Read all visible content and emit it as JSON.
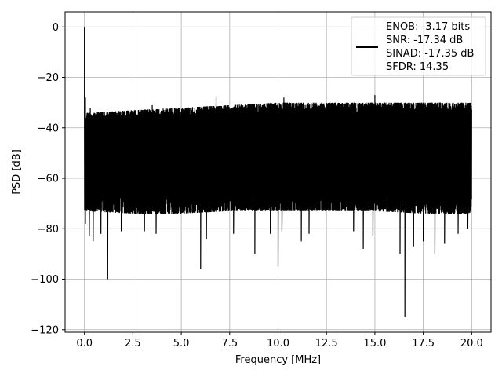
{
  "chart_data": {
    "type": "line",
    "title": "",
    "xlabel": "Frequency [MHz]",
    "ylabel": "PSD [dB]",
    "xlim": [
      -1.0,
      21.0
    ],
    "ylim": [
      -121,
      6
    ],
    "xticks": [
      0.0,
      2.5,
      5.0,
      7.5,
      10.0,
      12.5,
      15.0,
      17.5,
      20.0
    ],
    "xtick_labels": [
      "0.0",
      "2.5",
      "5.0",
      "7.5",
      "10.0",
      "12.5",
      "15.0",
      "17.5",
      "20.0"
    ],
    "yticks": [
      0,
      -20,
      -40,
      -60,
      -80,
      -100,
      -120
    ],
    "ytick_labels": [
      "0",
      "−20",
      "−40",
      "−60",
      "−80",
      "−100",
      "−120"
    ],
    "grid": true,
    "legend_position": "top-right",
    "series": [
      {
        "name": "ENOB: -3.17 bits\nSNR: -17.34 dB\nSINAD: -17.35 dB\nSFDR: 14.35",
        "color": "#000000",
        "x_range": [
          0.0,
          20.0
        ],
        "peak": {
          "x": 0.0,
          "y": 0.0
        },
        "upper_envelope_db": [
          -34,
          -33,
          -32,
          -31,
          -30,
          -30,
          -30,
          -30,
          -30
        ],
        "lower_envelope_db": [
          -73,
          -74,
          -74,
          -73,
          -73,
          -73,
          -73,
          -74,
          -74
        ],
        "deep_nulls": [
          {
            "x": 0.05,
            "y": -78
          },
          {
            "x": 0.25,
            "y": -83
          },
          {
            "x": 0.45,
            "y": -85
          },
          {
            "x": 0.85,
            "y": -82
          },
          {
            "x": 1.2,
            "y": -100
          },
          {
            "x": 1.9,
            "y": -81
          },
          {
            "x": 3.1,
            "y": -81
          },
          {
            "x": 3.7,
            "y": -82
          },
          {
            "x": 6.0,
            "y": -96
          },
          {
            "x": 6.3,
            "y": -84
          },
          {
            "x": 7.7,
            "y": -82
          },
          {
            "x": 8.8,
            "y": -90
          },
          {
            "x": 9.6,
            "y": -82
          },
          {
            "x": 10.0,
            "y": -95
          },
          {
            "x": 10.2,
            "y": -81
          },
          {
            "x": 11.2,
            "y": -85
          },
          {
            "x": 11.6,
            "y": -82
          },
          {
            "x": 13.9,
            "y": -81
          },
          {
            "x": 14.4,
            "y": -88
          },
          {
            "x": 14.9,
            "y": -83
          },
          {
            "x": 16.3,
            "y": -90
          },
          {
            "x": 16.55,
            "y": -115
          },
          {
            "x": 17.0,
            "y": -87
          },
          {
            "x": 17.5,
            "y": -85
          },
          {
            "x": 18.1,
            "y": -90
          },
          {
            "x": 18.6,
            "y": -86
          },
          {
            "x": 19.3,
            "y": -82
          },
          {
            "x": 19.8,
            "y": -80
          }
        ],
        "upper_spurs": [
          {
            "x": 0.05,
            "y": -28
          },
          {
            "x": 0.3,
            "y": -32
          },
          {
            "x": 3.5,
            "y": -31
          },
          {
            "x": 6.8,
            "y": -28
          },
          {
            "x": 10.3,
            "y": -28
          },
          {
            "x": 15.0,
            "y": -27
          },
          {
            "x": 19.7,
            "y": -31
          }
        ]
      }
    ]
  }
}
